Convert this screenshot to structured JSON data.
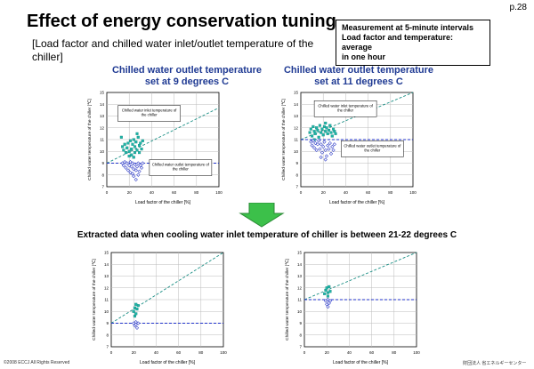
{
  "page_number": "p.28",
  "title": "Effect of energy conservation tuning",
  "subtitle": "[Load factor and chilled water inlet/outlet temperature of the chiller]",
  "note_box": {
    "line1": "Measurement at 5-minute intervals",
    "line2": "Load factor and temperature: average",
    "line3": "in one hour"
  },
  "extract_title": "Extracted data when cooling water inlet temperature of chiller is between 21-22 degrees C",
  "footer": {
    "copyright": "©2008 ECCJ All Rights Reserved",
    "org": "財団法人 省エネルギーセンター"
  },
  "colors": {
    "inlet": "#1fb5a8",
    "outlet": "#3340c8",
    "title_blue": "#1f3a93",
    "arrow": "#3cc04a"
  },
  "chart_data": [
    {
      "type": "scatter",
      "title_line1": "Chilled water outlet temperature",
      "title_line2": "set at 9 degrees C",
      "xlabel": "Load factor of the chiller [%]",
      "ylabel": "Chilled water temperature of the chiller [℃]",
      "xlim": [
        0,
        100
      ],
      "ylim": [
        7,
        15
      ],
      "xticks": [
        0,
        20,
        40,
        60,
        80,
        100
      ],
      "yticks": [
        7,
        8,
        9,
        10,
        11,
        12,
        13,
        14,
        15
      ],
      "grid": true,
      "design_line": [
        [
          0,
          9.0
        ],
        [
          100,
          13.7
        ]
      ],
      "setpoint": 9,
      "annotations": [
        "Chilled water inlet temperature of the chiller",
        "Chilled water outlet temperature of the chiller"
      ],
      "series": [
        {
          "name": "inlet",
          "points": [
            [
              13,
              11.2
            ],
            [
              14,
              10.4
            ],
            [
              15,
              10.1
            ],
            [
              16,
              10.6
            ],
            [
              17,
              9.9
            ],
            [
              18,
              10.3
            ],
            [
              19,
              10.7
            ],
            [
              20,
              10.0
            ],
            [
              21,
              10.9
            ],
            [
              22,
              10.2
            ],
            [
              22,
              9.7
            ],
            [
              23,
              10.6
            ],
            [
              24,
              11.0
            ],
            [
              25,
              10.4
            ],
            [
              25,
              9.9
            ],
            [
              26,
              10.8
            ],
            [
              27,
              10.1
            ],
            [
              28,
              11.2
            ],
            [
              29,
              10.5
            ],
            [
              30,
              10.7
            ],
            [
              31,
              10.2
            ],
            [
              32,
              10.9
            ],
            [
              27,
              11.5
            ],
            [
              24,
              9.5
            ],
            [
              20,
              9.6
            ],
            [
              29,
              9.9
            ]
          ]
        },
        {
          "name": "outlet",
          "points": [
            [
              14,
              9.0
            ],
            [
              15,
              8.8
            ],
            [
              16,
              9.1
            ],
            [
              17,
              8.6
            ],
            [
              18,
              9.0
            ],
            [
              19,
              8.4
            ],
            [
              20,
              8.8
            ],
            [
              21,
              9.1
            ],
            [
              21,
              8.2
            ],
            [
              22,
              8.7
            ],
            [
              23,
              9.0
            ],
            [
              24,
              8.5
            ],
            [
              24,
              7.9
            ],
            [
              25,
              8.9
            ],
            [
              26,
              8.4
            ],
            [
              27,
              8.7
            ],
            [
              28,
              9.0
            ],
            [
              29,
              8.3
            ],
            [
              30,
              8.8
            ],
            [
              31,
              8.6
            ],
            [
              32,
              9.0
            ],
            [
              26,
              7.6
            ],
            [
              23,
              8.1
            ],
            [
              28,
              8.0
            ]
          ]
        }
      ]
    },
    {
      "type": "scatter",
      "title_line1": "Chilled water outlet temperature",
      "title_line2": "set at 11 degrees C",
      "xlabel": "Load factor of the chiller [%]",
      "ylabel": "Chilled water temperature of the chiller [℃]",
      "xlim": [
        0,
        100
      ],
      "ylim": [
        7,
        15
      ],
      "xticks": [
        0,
        20,
        40,
        60,
        80,
        100
      ],
      "yticks": [
        7,
        8,
        9,
        10,
        11,
        12,
        13,
        14,
        15
      ],
      "grid": true,
      "design_line": [
        [
          0,
          11.0
        ],
        [
          100,
          15.5
        ]
      ],
      "setpoint": 11,
      "annotations": [
        "Chilled water inlet temperature of the chiller",
        "Chilled water outlet temperature of the chiller"
      ],
      "series": [
        {
          "name": "inlet",
          "points": [
            [
              8,
              11.6
            ],
            [
              9,
              11.9
            ],
            [
              10,
              11.3
            ],
            [
              11,
              12.1
            ],
            [
              12,
              11.7
            ],
            [
              13,
              11.5
            ],
            [
              14,
              12.0
            ],
            [
              15,
              11.8
            ],
            [
              16,
              11.2
            ],
            [
              17,
              12.2
            ],
            [
              18,
              11.6
            ],
            [
              19,
              11.9
            ],
            [
              20,
              11.4
            ],
            [
              21,
              12.1
            ],
            [
              22,
              11.7
            ],
            [
              23,
              12.0
            ],
            [
              24,
              11.5
            ],
            [
              25,
              11.8
            ],
            [
              26,
              12.2
            ],
            [
              27,
              11.6
            ],
            [
              28,
              11.3
            ],
            [
              29,
              11.9
            ],
            [
              30,
              11.7
            ],
            [
              31,
              11.5
            ],
            [
              12,
              11.0
            ],
            [
              22,
              12.4
            ]
          ]
        },
        {
          "name": "outlet",
          "points": [
            [
              9,
              10.8
            ],
            [
              10,
              10.5
            ],
            [
              11,
              10.9
            ],
            [
              12,
              10.3
            ],
            [
              13,
              10.7
            ],
            [
              14,
              10.1
            ],
            [
              15,
              10.6
            ],
            [
              16,
              10.9
            ],
            [
              17,
              10.2
            ],
            [
              18,
              10.6
            ],
            [
              19,
              9.9
            ],
            [
              20,
              10.4
            ],
            [
              21,
              10.8
            ],
            [
              22,
              10.1
            ],
            [
              23,
              9.6
            ],
            [
              24,
              10.5
            ],
            [
              25,
              10.2
            ],
            [
              26,
              10.7
            ],
            [
              27,
              9.8
            ],
            [
              28,
              10.4
            ],
            [
              29,
              10.1
            ],
            [
              30,
              10.6
            ],
            [
              22,
              9.3
            ],
            [
              18,
              9.5
            ]
          ]
        }
      ]
    },
    {
      "type": "scatter",
      "title_line1": "",
      "title_line2": "",
      "xlabel": "Load factor of the chiller [%]",
      "ylabel": "Chilled water temperature of the chiller [℃]",
      "xlim": [
        0,
        100
      ],
      "ylim": [
        7,
        15
      ],
      "xticks": [
        0,
        20,
        40,
        60,
        80,
        100
      ],
      "yticks": [
        7,
        8,
        9,
        10,
        11,
        12,
        13,
        14,
        15
      ],
      "grid": true,
      "design_line": [
        [
          0,
          9.0
        ],
        [
          100,
          15.5
        ]
      ],
      "setpoint": 9,
      "annotations": [],
      "series": [
        {
          "name": "inlet",
          "points": [
            [
              20,
              10.0
            ],
            [
              21,
              10.3
            ],
            [
              22,
              9.8
            ],
            [
              23,
              10.2
            ],
            [
              24,
              10.5
            ],
            [
              22,
              10.6
            ],
            [
              21,
              9.6
            ]
          ]
        },
        {
          "name": "outlet",
          "points": [
            [
              20,
              9.0
            ],
            [
              21,
              8.8
            ],
            [
              22,
              9.1
            ],
            [
              23,
              8.6
            ],
            [
              22,
              8.9
            ],
            [
              24,
              9.0
            ]
          ]
        }
      ]
    },
    {
      "type": "scatter",
      "title_line1": "",
      "title_line2": "",
      "xlabel": "Load factor of the chiller [%]",
      "ylabel": "Chilled water temperature of the chiller [℃]",
      "xlim": [
        0,
        100
      ],
      "ylim": [
        7,
        15
      ],
      "xticks": [
        0,
        20,
        40,
        60,
        80,
        100
      ],
      "yticks": [
        7,
        8,
        9,
        10,
        11,
        12,
        13,
        14,
        15
      ],
      "grid": true,
      "design_line": [
        [
          0,
          11.0
        ],
        [
          100,
          16.0
        ]
      ],
      "setpoint": 11,
      "annotations": [],
      "series": [
        {
          "name": "inlet",
          "points": [
            [
              18,
              11.5
            ],
            [
              19,
              11.8
            ],
            [
              20,
              12.0
            ],
            [
              21,
              11.6
            ],
            [
              22,
              12.1
            ],
            [
              23,
              11.7
            ],
            [
              21,
              11.3
            ]
          ]
        },
        {
          "name": "outlet",
          "points": [
            [
              19,
              10.9
            ],
            [
              20,
              10.6
            ],
            [
              21,
              11.0
            ],
            [
              22,
              10.7
            ],
            [
              23,
              10.9
            ],
            [
              21,
              10.4
            ]
          ]
        }
      ]
    }
  ]
}
